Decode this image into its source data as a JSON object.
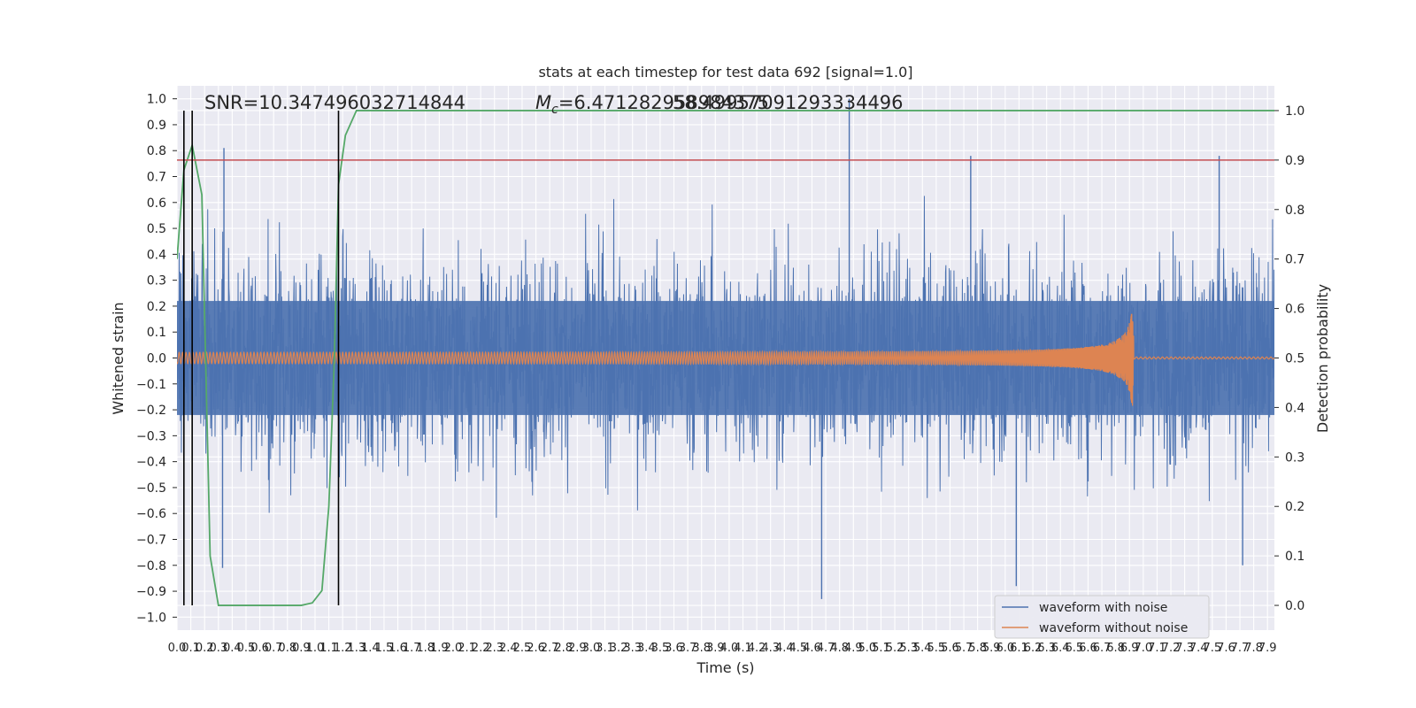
{
  "chart_data": {
    "type": "line",
    "title": "stats at each timestep for test data 692 [signal=1.0]",
    "xlabel": "Time (s)",
    "ylabel": "Whitened strain",
    "ylabel_right": "Detection probability",
    "xlim": [
      0.0,
      7.95
    ],
    "ylim": [
      -1.05,
      1.05
    ],
    "ylim_right": [
      -0.05,
      1.05
    ],
    "grid": true,
    "legend_placement": "lower-right",
    "x_ticks": [
      "0.0",
      "0.1",
      "0.2",
      "0.3",
      "0.4",
      "0.5",
      "0.6",
      "0.7",
      "0.8",
      "0.9",
      "1.0",
      "1.1",
      "1.2",
      "1.3",
      "1.4",
      "1.5",
      "1.6",
      "1.7",
      "1.8",
      "1.9",
      "2.0",
      "2.1",
      "2.2",
      "2.3",
      "2.4",
      "2.5",
      "2.6",
      "2.7",
      "2.8",
      "2.9",
      "3.0",
      "3.1",
      "3.2",
      "3.3",
      "3.4",
      "3.5",
      "3.6",
      "3.7",
      "3.8",
      "3.9",
      "4.0",
      "4.1",
      "4.2",
      "4.3",
      "4.4",
      "4.5",
      "4.6",
      "4.7",
      "4.8",
      "4.9",
      "5.0",
      "5.1",
      "5.2",
      "5.3",
      "5.4",
      "5.5",
      "5.6",
      "5.7",
      "5.8",
      "5.9",
      "6.0",
      "6.1",
      "6.2",
      "6.3",
      "6.4",
      "6.5",
      "6.6",
      "6.7",
      "6.8",
      "6.9",
      "7.0",
      "7.1",
      "7.2",
      "7.3",
      "7.4",
      "7.5",
      "7.6",
      "7.7",
      "7.8",
      "7.9"
    ],
    "y_ticks": [
      "1.0",
      "0.9",
      "0.8",
      "0.7",
      "0.6",
      "0.5",
      "0.4",
      "0.3",
      "0.2",
      "0.1",
      "0.0",
      "−0.1",
      "−0.2",
      "−0.3",
      "−0.4",
      "−0.5",
      "−0.6",
      "−0.7",
      "−0.8",
      "−0.9",
      "−1.0"
    ],
    "y_ticks_right": [
      "1.0",
      "0.9",
      "0.8",
      "0.7",
      "0.6",
      "0.5",
      "0.4",
      "0.3",
      "0.2",
      "0.1",
      "0.0"
    ],
    "annotations": {
      "snr": "SNR=10.347496032714844",
      "mc_prefix": "M",
      "mc_sub": "c",
      "mc_value": "=6.471282958984375",
      "overlap": "58.49957091293334496"
    },
    "threshold_right": 0.9,
    "vlines": [
      0.05,
      0.11,
      1.17
    ],
    "series": [
      {
        "name": "waveform with noise",
        "color": "#4c72b0",
        "axis": "left",
        "envelope_mean": 0.33,
        "peaks": [
          [
            0.34,
            0.81
          ],
          [
            0.33,
            -0.81
          ],
          [
            4.87,
            1.0
          ],
          [
            4.67,
            -0.93
          ],
          [
            5.75,
            0.78
          ],
          [
            6.08,
            -0.88
          ],
          [
            7.55,
            0.78
          ],
          [
            7.72,
            -0.8
          ]
        ]
      },
      {
        "name": "waveform without noise",
        "color": "#dd8452",
        "axis": "left",
        "chirp_start": 0.0,
        "chirp_end": 6.93,
        "amp_start": 0.02,
        "amp_end": 0.24
      },
      {
        "name": "",
        "color": "#55a868",
        "axis": "right",
        "x": [
          0.0,
          0.05,
          0.11,
          0.18,
          0.24,
          0.3,
          0.4,
          0.6,
          0.9,
          0.98,
          1.05,
          1.1,
          1.14,
          1.17,
          1.22,
          1.3,
          1.45,
          7.95
        ],
        "y": [
          0.7,
          0.88,
          0.93,
          0.83,
          0.1,
          0.0,
          0.0,
          0.0,
          0.0,
          0.005,
          0.03,
          0.2,
          0.5,
          0.85,
          0.95,
          1.0,
          1.0,
          1.0
        ]
      }
    ]
  }
}
